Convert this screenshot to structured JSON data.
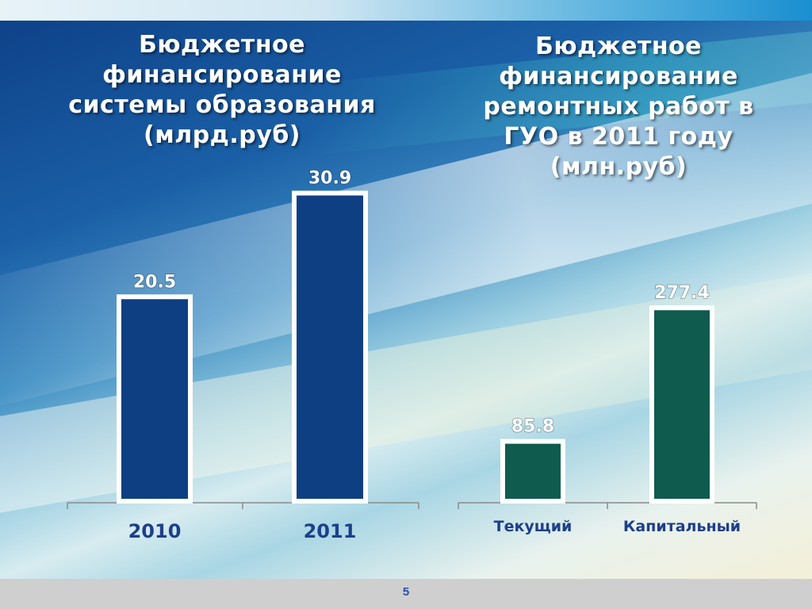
{
  "page_number": "5",
  "colors": {
    "blue_bar": "#0e3f82",
    "green_bar": "#0f5b4e",
    "bar_border": "#ffffff",
    "axis": "#8a8a8a"
  },
  "chart_data": [
    {
      "type": "bar",
      "title_lines": [
        "Бюджетное",
        "финансирование",
        "системы образования",
        "(млрд.руб)"
      ],
      "categories": [
        "2010",
        "2011"
      ],
      "values": [
        20.5,
        30.9
      ],
      "value_labels": [
        "20.5",
        "30.9"
      ],
      "ylim": [
        0,
        35
      ],
      "grid": false,
      "legend": "none"
    },
    {
      "type": "bar",
      "title_lines": [
        "Бюджетное",
        "финансирование",
        "ремонтных работ в",
        "ГУО в 2011 году",
        "(млн.руб)"
      ],
      "categories": [
        "Текущий",
        "Капитальный"
      ],
      "values": [
        85.8,
        277.4
      ],
      "value_labels": [
        "85.8",
        "277.4"
      ],
      "ylim": [
        0,
        330
      ],
      "grid": false,
      "legend": "none"
    }
  ]
}
